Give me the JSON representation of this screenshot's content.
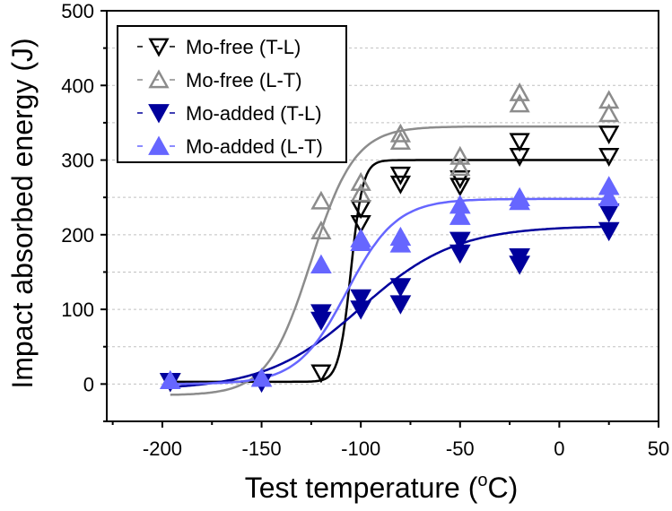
{
  "chart_data": {
    "type": "scatter",
    "title": "",
    "xlabel": "Test temperature (",
    "xlabel_sup": "o",
    "xlabel_tail": "C)",
    "ylabel": "Impact absorbed energy (J)",
    "xlim": [
      -228,
      50
    ],
    "ylim": [
      -50,
      500
    ],
    "xticks": [
      -200,
      -150,
      -100,
      -50,
      0,
      50
    ],
    "yticks": [
      0,
      100,
      200,
      300,
      400,
      500
    ],
    "grid": "horizontal dashed every 50",
    "legend_position": "top-left",
    "series": [
      {
        "name": "Mo-free (T-L)",
        "marker": "triangle-down-open",
        "color": "#000000",
        "x": [
          -196,
          -120,
          -100,
          -100,
          -80,
          -80,
          -50,
          -50,
          -20,
          -20,
          25,
          25
        ],
        "y": [
          3,
          15,
          235,
          215,
          280,
          268,
          275,
          265,
          325,
          305,
          335,
          305
        ],
        "fit": {
          "lower": 3,
          "upper": 300,
          "t0": -105,
          "width": 6
        }
      },
      {
        "name": "Mo-free (L-T)",
        "marker": "triangle-up-open",
        "color": "#8c8c8c",
        "x": [
          -120,
          -120,
          -100,
          -100,
          -80,
          -80,
          -50,
          -50,
          -20,
          -20,
          25,
          25
        ],
        "y": [
          245,
          205,
          270,
          255,
          335,
          325,
          305,
          290,
          390,
          375,
          380,
          362
        ],
        "fit": {
          "lower": -15,
          "upper": 345,
          "t0": -125,
          "width": 22
        }
      },
      {
        "name": "Mo-added (T-L)",
        "marker": "triangle-down-filled",
        "color": "#00009c",
        "x": [
          -196,
          -150,
          -120,
          -120,
          -100,
          -100,
          -80,
          -80,
          -50,
          -50,
          -20,
          -20,
          25,
          25
        ],
        "y": [
          3,
          2,
          95,
          85,
          115,
          100,
          130,
          107,
          192,
          175,
          170,
          160,
          230,
          205
        ],
        "fit": {
          "lower": -8,
          "upper": 212,
          "t0": -100,
          "width": 48
        }
      },
      {
        "name": "Mo-added (L-T)",
        "marker": "triangle-up-filled",
        "color": "#6666ff",
        "x": [
          -196,
          -150,
          -120,
          -100,
          -100,
          -80,
          -80,
          -50,
          -50,
          -20,
          -20,
          25,
          25
        ],
        "y": [
          5,
          8,
          160,
          195,
          190,
          197,
          188,
          240,
          225,
          250,
          245,
          265,
          250
        ],
        "fit": {
          "lower": 0,
          "upper": 248,
          "t0": -107,
          "width": 25
        }
      }
    ]
  }
}
